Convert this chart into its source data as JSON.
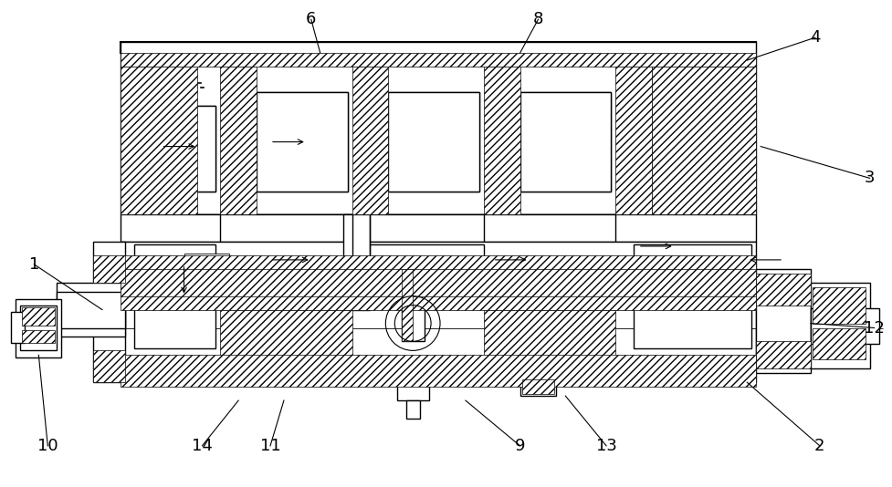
{
  "bg_color": "#ffffff",
  "line_color": "#000000",
  "figsize": [
    9.78,
    5.34
  ],
  "dpi": 100,
  "label_fontsize": 13
}
